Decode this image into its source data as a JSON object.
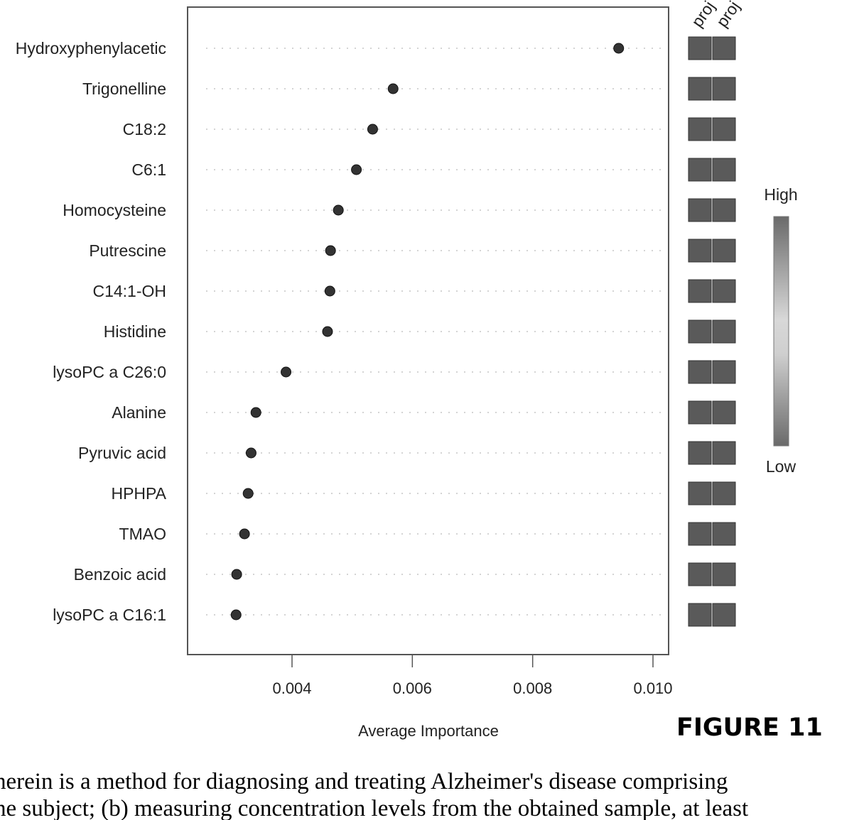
{
  "chart_data": {
    "type": "scatter",
    "xlabel": "Average Importance",
    "xticks": [
      "0.004",
      "0.006",
      "0.008",
      "0.010"
    ],
    "xlim": [
      0.00225,
      0.01027
    ],
    "categories": [
      "Hydroxyphenylacetic",
      "Trigonelline",
      "C18:2",
      "C6:1",
      "Homocysteine",
      "Putrescine",
      "C14:1-OH",
      "Histidine",
      "lysoPC a C26:0",
      "Alanine",
      "Pyruvic acid",
      "HPHPA",
      "TMAO",
      "Benzoic acid",
      "lysoPC a C16:1"
    ],
    "values": [
      0.00943,
      0.00568,
      0.00534,
      0.00507,
      0.00477,
      0.00464,
      0.00463,
      0.00459,
      0.0039,
      0.0034,
      0.00332,
      0.00327,
      0.00321,
      0.00308,
      0.00307
    ],
    "heatmap": {
      "columns": [
        "proj",
        "proj"
      ],
      "legend_high": "High",
      "legend_low": "Low"
    },
    "grid": "dotted horizontal guides"
  },
  "figure_label": "FIGURE 11",
  "caption": {
    "line1": "herein is a method for diagnosing and treating Alzheimer's disease comprising",
    "line2": "he subject; (b) measuring concentration levels from the obtained sample, at least"
  },
  "colors": {
    "dot": "#333333",
    "cell": "#5a5a5a",
    "frame": "#555555"
  }
}
